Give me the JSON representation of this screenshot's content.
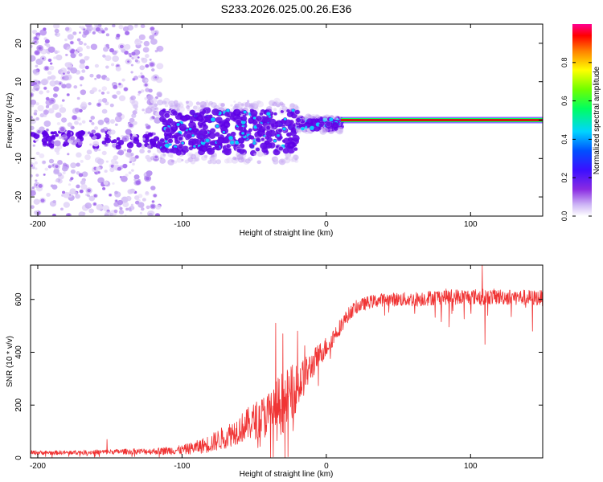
{
  "figure_title": "S233.2026.025.00.26.E36",
  "colors": {
    "snr_line": "#f03434",
    "carrier": "#e60000",
    "speckle_light": "#d9c8f5",
    "speckle_mid": "#9e62ee",
    "speckle_dark": "#5e00e6",
    "blob_core": "#00e0ff"
  },
  "chart_data": [
    {
      "type": "heatmap",
      "name": "spectrogram",
      "title": "S233.2026.025.00.26.E36",
      "xlabel": "Height of straight line (km)",
      "ylabel": "Frequency (Hz)",
      "xlim": [
        -205,
        150
      ],
      "ylim": [
        -25,
        25
      ],
      "xticks": [
        -200,
        -100,
        0,
        100
      ],
      "xtick_labels": [
        "-200",
        "-100",
        "0",
        "100"
      ],
      "yticks": [
        -20,
        -10,
        0,
        10,
        20
      ],
      "ytick_labels": [
        "-20",
        "-10",
        "0",
        "10",
        "20"
      ],
      "value_range": [
        0.0,
        1.0
      ],
      "carrier_line": {
        "frequency_hz": 0,
        "x_start_km": 10,
        "x_end_km": 150,
        "amplitude": 1.0
      },
      "colorbar": {
        "label": "Normalized spectral amplitude",
        "ticks": [
          0.0,
          0.2,
          0.4,
          0.6,
          0.8
        ],
        "tick_labels": [
          "0.0",
          "0.2",
          "0.4",
          "0.6",
          "0.8"
        ],
        "max": 1.0,
        "colormap": "rainbow (white to purple, blue, cyan, green, yellow, red, magenta)"
      },
      "regions": [
        {
          "x_from_km": -205,
          "x_to_km": -115,
          "description": "scattered weak speckle",
          "frequency_spread_hz": 25,
          "amplitude": 0.15
        },
        {
          "x_from_km": -115,
          "x_to_km": -20,
          "description": "scintillating signal cluster",
          "frequency_center_hz": -3,
          "frequency_spread_hz": 8,
          "amplitude": 0.3
        },
        {
          "x_from_km": -20,
          "x_to_km": 10,
          "description": "converging signal",
          "frequency_center_hz": -1,
          "frequency_spread_hz": 2,
          "amplitude": 0.6
        },
        {
          "x_from_km": 10,
          "x_to_km": 150,
          "description": "stable carrier",
          "frequency_center_hz": 0,
          "frequency_spread_hz": 0.5,
          "amplitude": 1.0
        }
      ]
    },
    {
      "type": "line",
      "name": "snr",
      "xlabel": "Height of straight line (km)",
      "ylabel": "SNR (10 * v/v)",
      "xlim": [
        -205,
        150
      ],
      "ylim": [
        0,
        730
      ],
      "xticks": [
        -200,
        -100,
        0,
        100
      ],
      "xtick_labels": [
        "-200",
        "-100",
        "0",
        "100"
      ],
      "yticks": [
        0,
        200,
        400,
        600
      ],
      "ytick_labels": [
        "0",
        "200",
        "400",
        "600"
      ],
      "series": [
        {
          "name": "SNR",
          "x": [
            -205,
            -180,
            -160,
            -140,
            -120,
            -100,
            -90,
            -80,
            -70,
            -60,
            -50,
            -40,
            -35,
            -30,
            -25,
            -20,
            -15,
            -10,
            -5,
            0,
            5,
            10,
            15,
            20,
            30,
            40,
            60,
            80,
            100,
            120,
            150
          ],
          "values": [
            20,
            20,
            22,
            24,
            25,
            30,
            40,
            55,
            80,
            110,
            140,
            165,
            190,
            210,
            240,
            270,
            310,
            350,
            390,
            420,
            460,
            500,
            540,
            570,
            590,
            600,
            600,
            610,
            610,
            610,
            605
          ],
          "noise_amplitude": [
            8,
            8,
            9,
            10,
            12,
            18,
            25,
            35,
            45,
            55,
            70,
            90,
            110,
            120,
            110,
            90,
            70,
            55,
            45,
            40,
            35,
            30,
            28,
            25,
            25,
            25,
            28,
            30,
            30,
            30,
            30
          ]
        }
      ],
      "spikes": [
        {
          "x": -152,
          "value": 70
        },
        {
          "x": -35,
          "value": 510
        },
        {
          "x": -30,
          "value": 470
        },
        {
          "x": -20,
          "value": 480
        },
        {
          "x": -15,
          "value": 425
        },
        {
          "x": 108,
          "value": 730
        },
        {
          "x": 110,
          "value": 430
        },
        {
          "x": 143,
          "value": 480
        }
      ]
    }
  ]
}
